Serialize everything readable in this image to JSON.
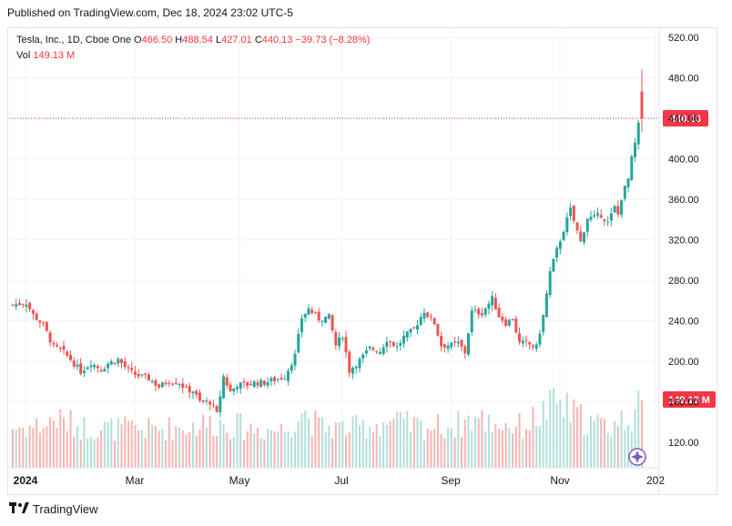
{
  "header": {
    "published": "Published on TradingView.com, Dec 18, 2024 23:02 UTC-5"
  },
  "legend": {
    "symbol": "Tesla, Inc., 1D, Cboe One",
    "o_label": "O",
    "o": "466.50",
    "h_label": "H",
    "h": "488.54",
    "l_label": "L",
    "l": "427.01",
    "c_label": "C",
    "c": "440.13",
    "change": "−39.73 (−8.28%)",
    "vol_label": "Vol",
    "vol": "149.13 M"
  },
  "footer": {
    "brand": "TradingView"
  },
  "colors": {
    "up": "#26a69a",
    "down": "#ef5350",
    "up_vol": "#b2dfdb",
    "down_vol": "#f7b4b2",
    "price_line": "#f23645",
    "grid": "#f0f3fa"
  },
  "chart_data": {
    "type": "candlestick",
    "symbol": "Tesla, Inc.",
    "interval": "1D",
    "y_axis_ticks": [
      "520.00",
      "480.00",
      "440.00",
      "400.00",
      "360.00",
      "320.00",
      "280.00",
      "240.00",
      "200.00",
      "160.00",
      "120.00"
    ],
    "x_axis_ticks": [
      "2024",
      "Mar",
      "May",
      "Jul",
      "Sep",
      "Nov",
      "202"
    ],
    "ylim": [
      95,
      530
    ],
    "last_price_label": "440.13",
    "last_volume_label": "149.13 M",
    "last_candle": {
      "open": 466.5,
      "high": 488.54,
      "low": 427.01,
      "close": 440.13,
      "volume_m": 149.13
    },
    "close_path": [
      [
        0,
        256
      ],
      [
        8,
        258
      ],
      [
        12,
        246
      ],
      [
        18,
        236
      ],
      [
        24,
        214
      ],
      [
        28,
        212
      ],
      [
        34,
        202
      ],
      [
        40,
        190
      ],
      [
        46,
        199
      ],
      [
        52,
        192
      ],
      [
        56,
        198
      ],
      [
        62,
        202
      ],
      [
        68,
        191
      ],
      [
        72,
        187
      ],
      [
        80,
        183
      ],
      [
        86,
        175
      ],
      [
        92,
        181
      ],
      [
        98,
        179
      ],
      [
        102,
        172
      ],
      [
        106,
        171
      ],
      [
        110,
        160
      ],
      [
        116,
        160
      ],
      [
        120,
        148
      ],
      [
        124,
        185
      ],
      [
        128,
        170
      ],
      [
        132,
        177
      ],
      [
        138,
        177
      ],
      [
        142,
        179
      ],
      [
        148,
        179
      ],
      [
        154,
        182
      ],
      [
        160,
        185
      ],
      [
        166,
        206
      ],
      [
        170,
        243
      ],
      [
        174,
        252
      ],
      [
        180,
        242
      ],
      [
        186,
        244
      ],
      [
        190,
        216
      ],
      [
        194,
        226
      ],
      [
        198,
        191
      ],
      [
        204,
        201
      ],
      [
        210,
        213
      ],
      [
        216,
        210
      ],
      [
        220,
        222
      ],
      [
        226,
        214
      ],
      [
        230,
        224
      ],
      [
        236,
        232
      ],
      [
        242,
        250
      ],
      [
        248,
        238
      ],
      [
        252,
        216
      ],
      [
        258,
        216
      ],
      [
        262,
        218
      ],
      [
        266,
        209
      ],
      [
        270,
        249
      ],
      [
        276,
        248
      ],
      [
        282,
        262
      ],
      [
        286,
        245
      ],
      [
        290,
        238
      ],
      [
        294,
        242
      ],
      [
        298,
        218
      ],
      [
        302,
        218
      ],
      [
        308,
        214
      ],
      [
        312,
        245
      ],
      [
        316,
        288
      ],
      [
        320,
        310
      ],
      [
        324,
        330
      ],
      [
        328,
        350
      ],
      [
        330,
        339
      ],
      [
        334,
        318
      ],
      [
        338,
        342
      ],
      [
        342,
        342
      ],
      [
        346,
        345
      ],
      [
        350,
        337
      ],
      [
        354,
        352
      ],
      [
        356,
        345
      ],
      [
        358,
        362
      ],
      [
        362,
        380
      ],
      [
        364,
        400
      ],
      [
        366,
        415
      ],
      [
        368,
        433
      ],
      [
        370,
        440
      ]
    ],
    "volume_path_m": [
      [
        0,
        98
      ],
      [
        10,
        100
      ],
      [
        20,
        105
      ],
      [
        24,
        120
      ],
      [
        40,
        100
      ],
      [
        60,
        96
      ],
      [
        80,
        94
      ],
      [
        100,
        100
      ],
      [
        120,
        110
      ],
      [
        140,
        96
      ],
      [
        160,
        92
      ],
      [
        170,
        140
      ],
      [
        180,
        100
      ],
      [
        200,
        96
      ],
      [
        220,
        112
      ],
      [
        240,
        100
      ],
      [
        260,
        102
      ],
      [
        270,
        120
      ],
      [
        280,
        112
      ],
      [
        300,
        100
      ],
      [
        316,
        145
      ],
      [
        320,
        160
      ],
      [
        330,
        130
      ],
      [
        340,
        110
      ],
      [
        350,
        100
      ],
      [
        360,
        120
      ],
      [
        370,
        149
      ]
    ]
  }
}
